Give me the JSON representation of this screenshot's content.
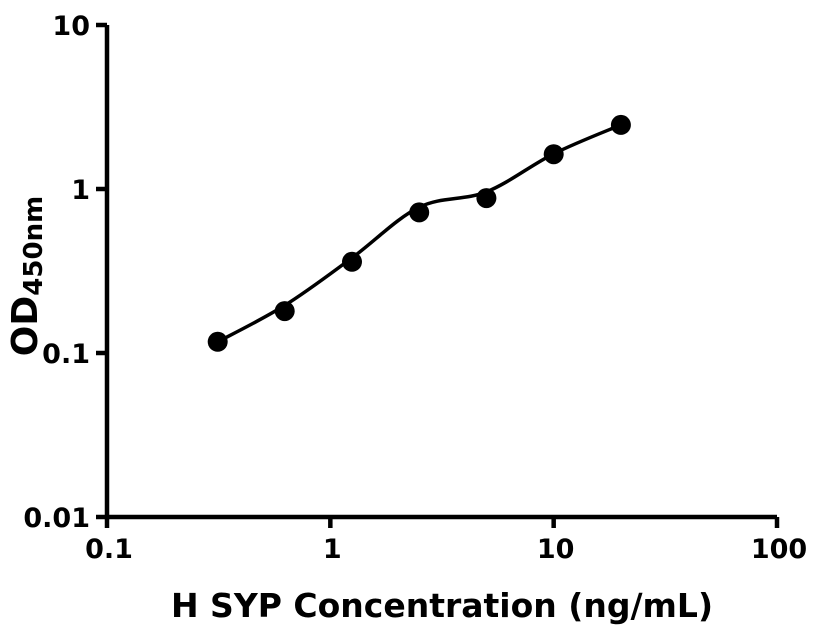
{
  "figure": {
    "background": "#ffffff",
    "foreground": "#000000"
  },
  "chart_data": {
    "type": "scatter",
    "title": "",
    "xlabel": "H SYP Concentration (ng/mL)",
    "ylabel_main": "OD",
    "ylabel_sub": "450nm",
    "x_scale": "log",
    "y_scale": "log",
    "xlim": [
      0.1,
      100
    ],
    "ylim": [
      0.01,
      10
    ],
    "grid": false,
    "legend": null,
    "x_ticks": [
      {
        "value": 0.1,
        "label": "0.1"
      },
      {
        "value": 1,
        "label": "1"
      },
      {
        "value": 10,
        "label": "10"
      },
      {
        "value": 100,
        "label": "100"
      }
    ],
    "y_ticks": [
      {
        "value": 0.01,
        "label": "0.01"
      },
      {
        "value": 0.1,
        "label": "0.1"
      },
      {
        "value": 1,
        "label": "1"
      },
      {
        "value": 10,
        "label": "10"
      }
    ],
    "series": [
      {
        "name": "standard-points",
        "type": "scatter",
        "marker": "filled-circle",
        "color": "#000000",
        "x": [
          0.313,
          0.625,
          1.25,
          2.5,
          5,
          10,
          20
        ],
        "y": [
          0.117,
          0.18,
          0.36,
          0.72,
          0.88,
          1.63,
          2.46
        ]
      },
      {
        "name": "fit-curve",
        "type": "line",
        "color": "#000000",
        "x": [
          0.313,
          0.625,
          1.25,
          2.5,
          5,
          10,
          20
        ],
        "y": [
          0.117,
          0.195,
          0.38,
          0.775,
          0.96,
          1.64,
          2.46
        ]
      }
    ]
  }
}
